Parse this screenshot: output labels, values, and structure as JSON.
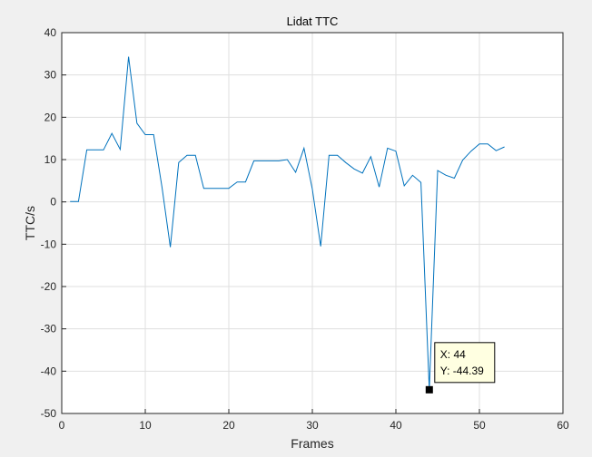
{
  "chart_data": {
    "type": "line",
    "title": "Lidat TTC",
    "xlabel": "Frames",
    "ylabel": "TTC/s",
    "xlim": [
      0,
      60
    ],
    "ylim": [
      -50,
      40
    ],
    "xticks": [
      0,
      10,
      20,
      30,
      40,
      50,
      60
    ],
    "yticks": [
      -50,
      -40,
      -30,
      -20,
      -10,
      0,
      10,
      20,
      30,
      40
    ],
    "grid": true,
    "line_color": "#0072bd",
    "series": [
      {
        "x": [
          1,
          2,
          3,
          4,
          5,
          6,
          7,
          8,
          9,
          10,
          11,
          12,
          13,
          14,
          15,
          16,
          17,
          18,
          19,
          20,
          21,
          22,
          23,
          24,
          25,
          26,
          27,
          28,
          29,
          30,
          31,
          32,
          33,
          34,
          35,
          36,
          37,
          38,
          39,
          40,
          41,
          42,
          43,
          44,
          45,
          46,
          47,
          48,
          49,
          50,
          51,
          52,
          53
        ],
        "values": [
          0.1,
          0.1,
          12.3,
          12.3,
          12.3,
          16.2,
          12.4,
          34.3,
          18.6,
          15.9,
          15.9,
          3.5,
          -10.7,
          9.3,
          11.0,
          11.0,
          3.2,
          3.2,
          3.2,
          3.2,
          4.7,
          4.7,
          9.7,
          9.7,
          9.7,
          9.7,
          10.0,
          7.0,
          12.7,
          3.0,
          -10.5,
          11.0,
          11.0,
          9.3,
          7.8,
          6.8,
          10.7,
          3.5,
          12.7,
          12.0,
          3.8,
          6.3,
          4.6,
          -44.39,
          7.4,
          6.3,
          5.6,
          9.9,
          12.0,
          13.7,
          13.7,
          12.1,
          13.0
        ]
      }
    ],
    "datatip": {
      "x_text": "X: 44",
      "y_text": "Y: -44.39",
      "x": 44,
      "y": -44.39
    }
  }
}
